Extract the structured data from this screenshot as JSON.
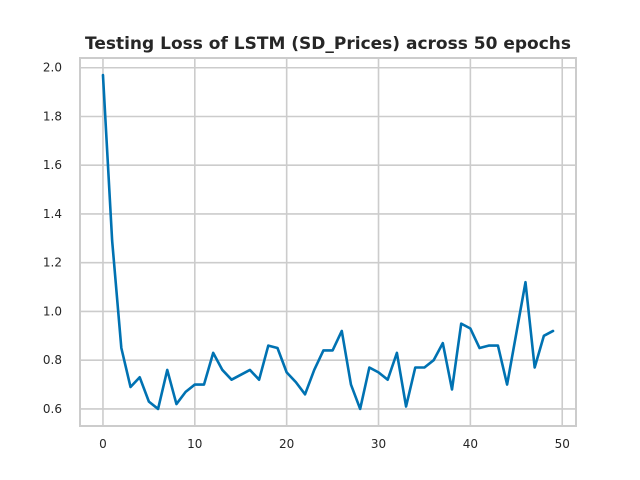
{
  "chart_data": {
    "type": "line",
    "title": "Testing Loss of LSTM (SD_Prices) across 50 epochs",
    "xlabel": "",
    "ylabel": "",
    "xlim": [
      -2.5,
      51.5
    ],
    "ylim": [
      0.53,
      2.04
    ],
    "x_ticks": [
      0,
      10,
      20,
      30,
      40,
      50
    ],
    "x_tick_labels": [
      "0",
      "10",
      "20",
      "30",
      "40",
      "50"
    ],
    "y_ticks": [
      0.6,
      0.8,
      1.0,
      1.2,
      1.4,
      1.6,
      1.8,
      2.0
    ],
    "y_tick_labels": [
      "0.6",
      "0.8",
      "1.0",
      "1.2",
      "1.4",
      "1.6",
      "1.8",
      "2.0"
    ],
    "grid": true,
    "series": [
      {
        "color": "#0072b2",
        "x": [
          0,
          1,
          2,
          3,
          4,
          5,
          6,
          7,
          8,
          9,
          10,
          11,
          12,
          13,
          14,
          15,
          16,
          17,
          18,
          19,
          20,
          21,
          22,
          23,
          24,
          25,
          26,
          27,
          28,
          29,
          30,
          31,
          32,
          33,
          34,
          35,
          36,
          37,
          38,
          39,
          40,
          41,
          42,
          43,
          44,
          45,
          46,
          47,
          48,
          49
        ],
        "values": [
          1.97,
          1.29,
          0.85,
          0.69,
          0.73,
          0.63,
          0.6,
          0.76,
          0.62,
          0.67,
          0.7,
          0.7,
          0.83,
          0.76,
          0.72,
          0.74,
          0.76,
          0.72,
          0.86,
          0.85,
          0.75,
          0.71,
          0.66,
          0.76,
          0.84,
          0.84,
          0.92,
          0.7,
          0.6,
          0.77,
          0.75,
          0.72,
          0.83,
          0.61,
          0.77,
          0.77,
          0.8,
          0.87,
          0.68,
          0.95,
          0.93,
          0.85,
          0.86,
          0.86,
          0.7,
          0.91,
          1.12,
          0.77,
          0.9,
          0.92
        ]
      }
    ]
  }
}
